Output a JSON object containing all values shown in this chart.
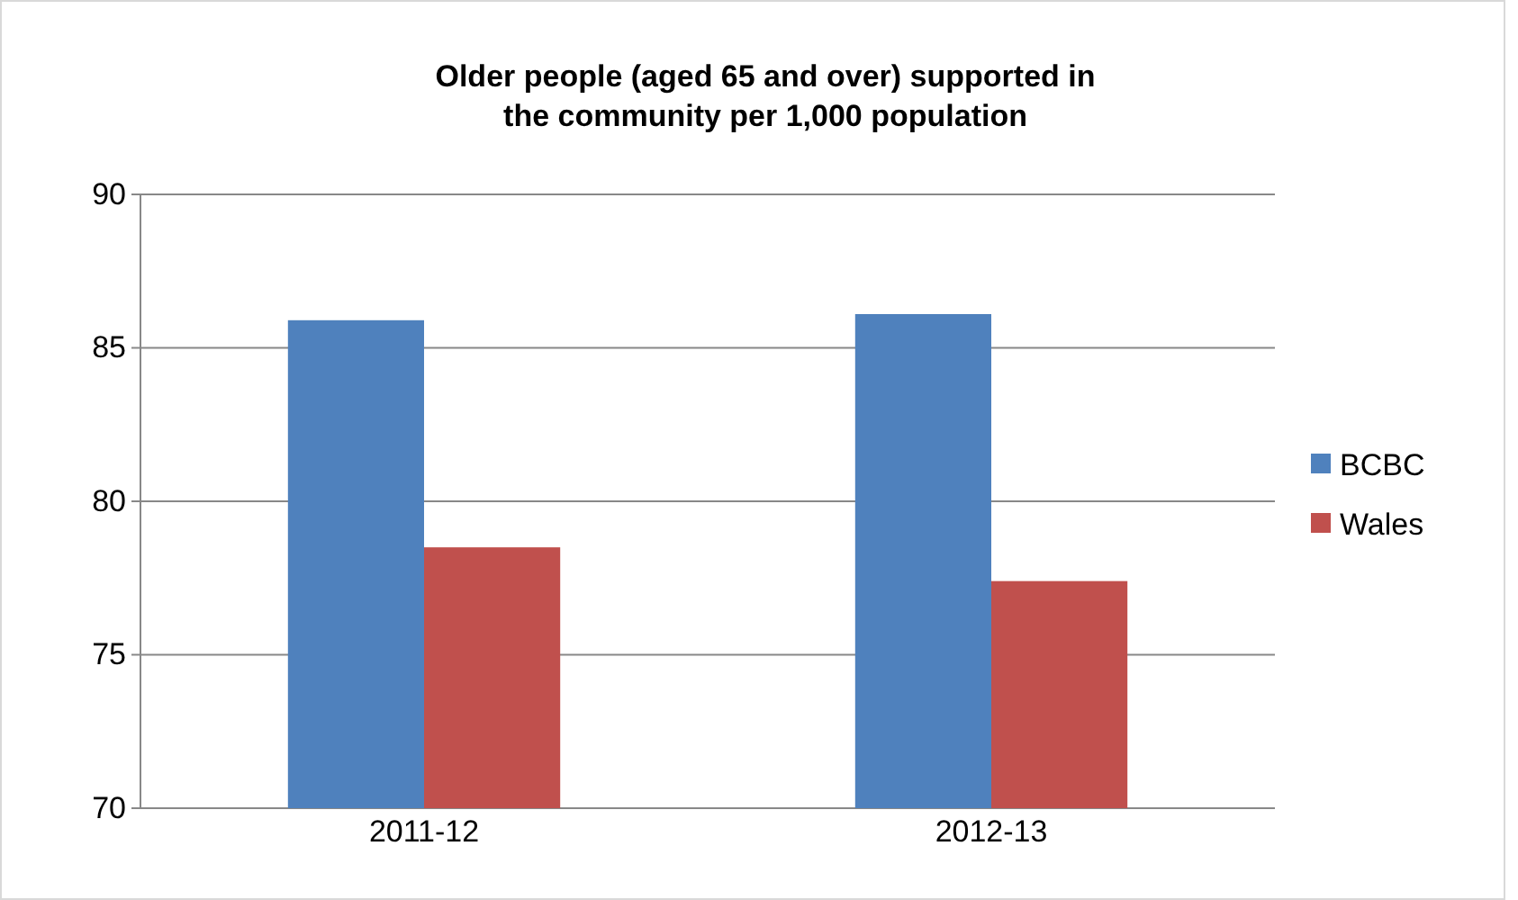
{
  "chart_data": {
    "type": "bar",
    "title": "Older people (aged 65 and over) supported  in the community per 1,000 population",
    "categories": [
      "2011-12",
      "2012-13"
    ],
    "series": [
      {
        "name": "BCBC",
        "color": "#4f81bd",
        "values": [
          85.9,
          86.1
        ]
      },
      {
        "name": "Wales",
        "color": "#c0504d",
        "values": [
          78.5,
          77.4
        ]
      }
    ],
    "ylim": [
      70,
      90
    ],
    "yticks": [
      70,
      75,
      80,
      85,
      90
    ],
    "grid": "y",
    "legend": "right"
  }
}
